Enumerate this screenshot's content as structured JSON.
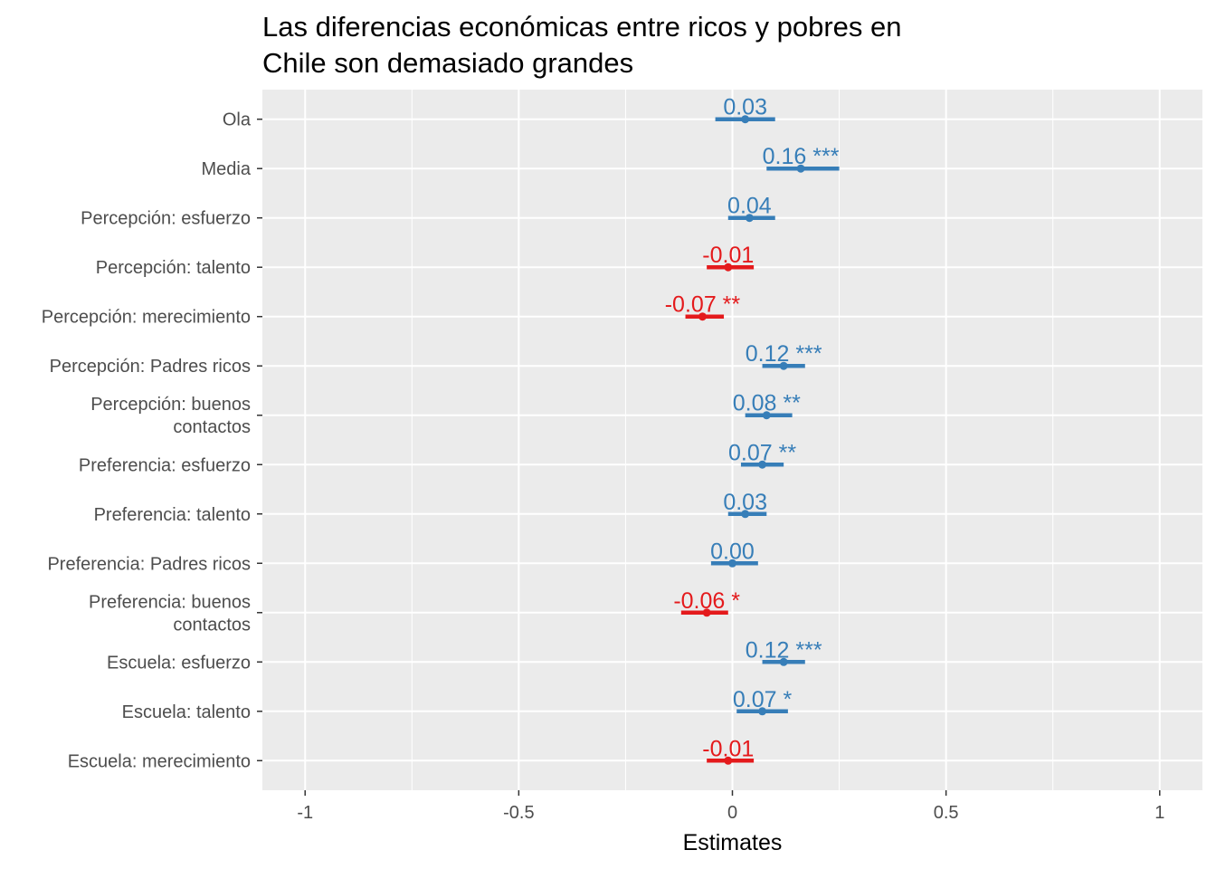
{
  "chart_data": {
    "type": "forest",
    "title_lines": [
      "Las diferencias económicas entre ricos y pobres en",
      "Chile son demasiado grandes"
    ],
    "xlabel": "Estimates",
    "xlim": [
      -1.1,
      1.1
    ],
    "x_ticks": [
      {
        "value": -1,
        "label": "-1"
      },
      {
        "value": -0.5,
        "label": "-0.5"
      },
      {
        "value": 0,
        "label": "0"
      },
      {
        "value": 0.5,
        "label": "0.5"
      },
      {
        "value": 1,
        "label": "1"
      }
    ],
    "grid": true,
    "colors": {
      "positive": "#377EB8",
      "negative": "#E41A1C",
      "panel": "#EBEBEB",
      "grid": "#FFFFFF",
      "axis_text": "#4D4D4D"
    },
    "terms": [
      {
        "label": [
          "Ola"
        ],
        "estimate": 0.03,
        "low": -0.04,
        "high": 0.1,
        "text": "0.03"
      },
      {
        "label": [
          "Media"
        ],
        "estimate": 0.16,
        "low": 0.08,
        "high": 0.25,
        "text": "0.16 ***"
      },
      {
        "label": [
          "Percepción: esfuerzo"
        ],
        "estimate": 0.04,
        "low": -0.01,
        "high": 0.1,
        "text": "0.04"
      },
      {
        "label": [
          "Percepción: talento"
        ],
        "estimate": -0.01,
        "low": -0.06,
        "high": 0.05,
        "text": "-0.01"
      },
      {
        "label": [
          "Percepción: merecimiento"
        ],
        "estimate": -0.07,
        "low": -0.11,
        "high": -0.02,
        "text": "-0.07 **"
      },
      {
        "label": [
          "Percepción: Padres ricos"
        ],
        "estimate": 0.12,
        "low": 0.07,
        "high": 0.17,
        "text": "0.12 ***"
      },
      {
        "label": [
          "Percepción: buenos",
          "contactos"
        ],
        "estimate": 0.08,
        "low": 0.03,
        "high": 0.14,
        "text": "0.08 **"
      },
      {
        "label": [
          "Preferencia: esfuerzo"
        ],
        "estimate": 0.07,
        "low": 0.02,
        "high": 0.12,
        "text": "0.07 **"
      },
      {
        "label": [
          "Preferencia: talento"
        ],
        "estimate": 0.03,
        "low": -0.01,
        "high": 0.08,
        "text": "0.03"
      },
      {
        "label": [
          "Preferencia: Padres ricos"
        ],
        "estimate": 0.0,
        "low": -0.05,
        "high": 0.06,
        "text": "0.00"
      },
      {
        "label": [
          "Preferencia: buenos",
          "contactos"
        ],
        "estimate": -0.06,
        "low": -0.12,
        "high": -0.01,
        "text": "-0.06 *"
      },
      {
        "label": [
          "Escuela: esfuerzo"
        ],
        "estimate": 0.12,
        "low": 0.07,
        "high": 0.17,
        "text": "0.12 ***"
      },
      {
        "label": [
          "Escuela: talento"
        ],
        "estimate": 0.07,
        "low": 0.01,
        "high": 0.13,
        "text": "0.07 *"
      },
      {
        "label": [
          "Escuela: merecimiento"
        ],
        "estimate": -0.01,
        "low": -0.06,
        "high": 0.05,
        "text": "-0.01"
      }
    ]
  }
}
